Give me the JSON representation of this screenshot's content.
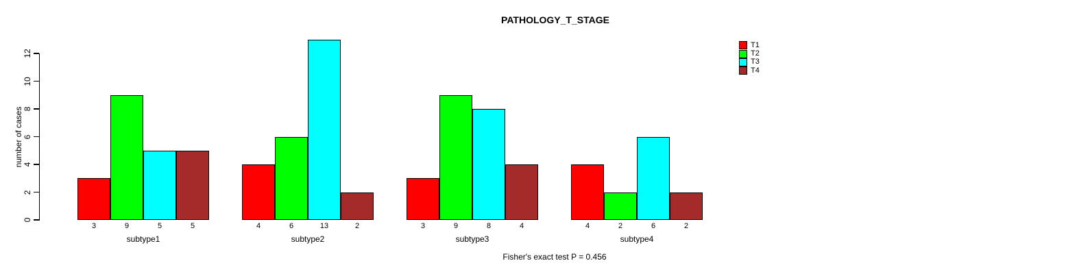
{
  "chart_data": {
    "type": "bar",
    "title": "PATHOLOGY_T_STAGE",
    "ylabel": "number of cases",
    "xlabel": "",
    "caption": "Fisher's exact test P = 0.456",
    "categories": [
      "subtype1",
      "subtype2",
      "subtype3",
      "subtype4"
    ],
    "series": [
      {
        "name": "T1",
        "color": "#FF0000",
        "values": [
          3,
          4,
          3,
          4
        ]
      },
      {
        "name": "T2",
        "color": "#00FF00",
        "values": [
          9,
          6,
          9,
          2
        ]
      },
      {
        "name": "T3",
        "color": "#00FFFF",
        "values": [
          5,
          13,
          8,
          6
        ]
      },
      {
        "name": "T4",
        "color": "#A52A2A",
        "values": [
          5,
          2,
          4,
          2
        ]
      }
    ],
    "values_shown_under_bars": true,
    "ylim": [
      0,
      12
    ],
    "yticks": [
      0,
      2,
      4,
      6,
      8,
      10,
      12
    ],
    "grid": false,
    "legend_position": "top-right",
    "legend_labels": [
      "T1",
      "T2",
      "T3",
      "T4"
    ]
  }
}
